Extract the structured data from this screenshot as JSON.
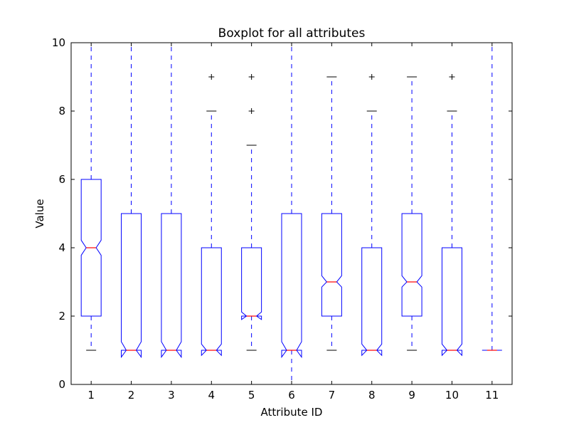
{
  "chart_data": {
    "type": "boxplot",
    "title": "Boxplot for all attributes",
    "xlabel": "Attribute ID",
    "ylabel": "Value",
    "ylim": [
      0,
      10
    ],
    "y_ticks": [
      "0",
      "2",
      "4",
      "6",
      "8",
      "10"
    ],
    "categories": [
      "1",
      "2",
      "3",
      "4",
      "5",
      "6",
      "7",
      "8",
      "9",
      "10",
      "11"
    ],
    "notched": true,
    "boxes": [
      {
        "q1": 2,
        "median": 4,
        "q3": 6,
        "whisker_low": 1,
        "whisker_high": 10,
        "notch_low": 3.78,
        "notch_high": 4.22,
        "fliers": []
      },
      {
        "q1": 1,
        "median": 1,
        "q3": 5,
        "whisker_low": 1,
        "whisker_high": 10,
        "notch_low": 0.8,
        "notch_high": 1.25,
        "fliers": []
      },
      {
        "q1": 1,
        "median": 1,
        "q3": 5,
        "whisker_low": 1,
        "whisker_high": 10,
        "notch_low": 0.8,
        "notch_high": 1.25,
        "fliers": []
      },
      {
        "q1": 1,
        "median": 1,
        "q3": 4,
        "whisker_low": 1,
        "whisker_high": 8,
        "notch_low": 0.85,
        "notch_high": 1.18,
        "fliers": [
          9
        ]
      },
      {
        "q1": 2,
        "median": 2,
        "q3": 4,
        "whisker_low": 1,
        "whisker_high": 7,
        "notch_low": 1.9,
        "notch_high": 2.12,
        "fliers": [
          8,
          9
        ]
      },
      {
        "q1": 1,
        "median": 1,
        "q3": 5,
        "whisker_low": 0,
        "whisker_high": 10,
        "notch_low": 0.8,
        "notch_high": 1.25,
        "fliers": []
      },
      {
        "q1": 2,
        "median": 3,
        "q3": 5,
        "whisker_low": 1,
        "whisker_high": 9,
        "notch_low": 2.85,
        "notch_high": 3.18,
        "fliers": []
      },
      {
        "q1": 1,
        "median": 1,
        "q3": 4,
        "whisker_low": 1,
        "whisker_high": 8,
        "notch_low": 0.85,
        "notch_high": 1.18,
        "fliers": [
          9
        ]
      },
      {
        "q1": 2,
        "median": 3,
        "q3": 5,
        "whisker_low": 1,
        "whisker_high": 9,
        "notch_low": 2.85,
        "notch_high": 3.18,
        "fliers": []
      },
      {
        "q1": 1,
        "median": 1,
        "q3": 4,
        "whisker_low": 1,
        "whisker_high": 8,
        "notch_low": 0.85,
        "notch_high": 1.18,
        "fliers": [
          9
        ]
      },
      {
        "q1": 1,
        "median": 1,
        "q3": 1,
        "whisker_low": 1,
        "whisker_high": 10,
        "notch_low": 1,
        "notch_high": 1,
        "fliers": []
      }
    ],
    "colors": {
      "box": "#0000ff",
      "median": "#ff0000",
      "flier": "#000000",
      "cap": "#000000",
      "axis": "#000000"
    },
    "grid": false,
    "legend": "none"
  }
}
